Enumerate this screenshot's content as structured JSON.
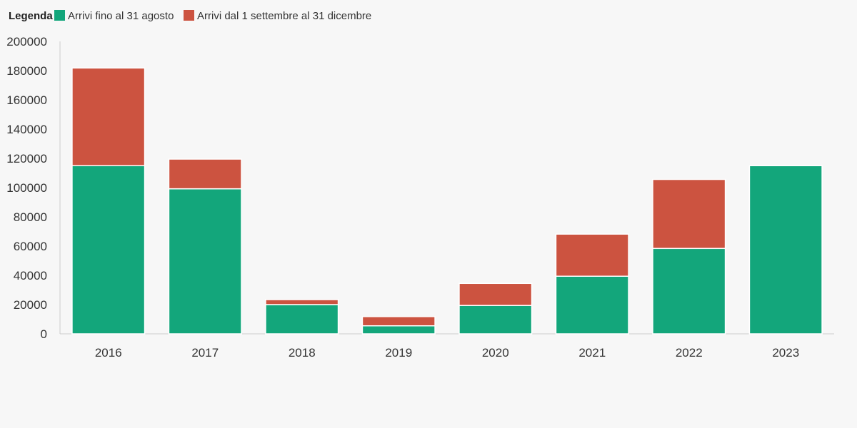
{
  "legend": {
    "title": "Legenda",
    "items": [
      {
        "label": "Arrivi fino al 31 agosto",
        "color": "#13a67b"
      },
      {
        "label": "Arrivi dal 1 settembre al 31 dicembre",
        "color": "#cc5340"
      }
    ]
  },
  "chart_data": {
    "type": "bar",
    "stacked": true,
    "categories": [
      "2016",
      "2017",
      "2018",
      "2019",
      "2020",
      "2021",
      "2022",
      "2023"
    ],
    "series": [
      {
        "name": "Arrivi fino al 31 agosto",
        "color": "#13a67b",
        "values": [
          115000,
          99200,
          20000,
          5500,
          19400,
          39400,
          58400,
          115000
        ]
      },
      {
        "name": "Arrivi dal 1 settembre al 31 dicembre",
        "color": "#cc5340",
        "values": [
          66800,
          20300,
          3400,
          6300,
          15100,
          28800,
          47200,
          0
        ]
      }
    ],
    "ylim": [
      0,
      200000
    ],
    "yticks": [
      0,
      20000,
      40000,
      60000,
      80000,
      100000,
      120000,
      140000,
      160000,
      180000,
      200000
    ],
    "yticklabels": [
      "0",
      "20000",
      "40000",
      "60000",
      "80000",
      "100000",
      "120000",
      "140000",
      "160000",
      "180000",
      "200000"
    ],
    "grid": false,
    "legend_position": "top-left"
  }
}
